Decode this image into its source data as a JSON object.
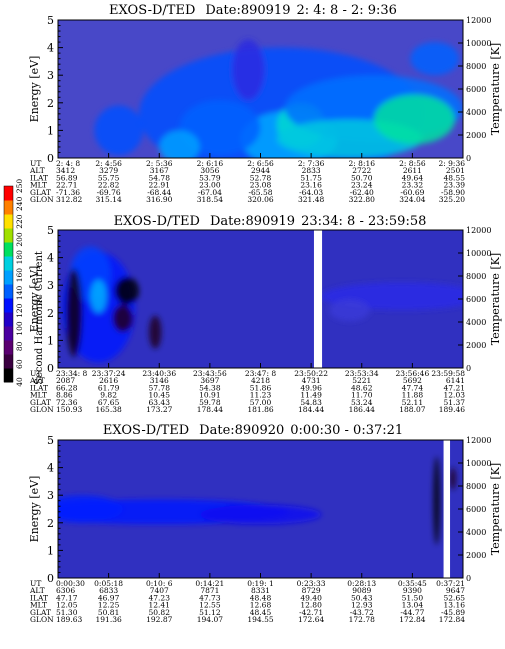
{
  "colorbar": {
    "label": "Second Harmonic Current",
    "ticks": [
      "40",
      "60",
      "80",
      "100",
      "120",
      "140",
      "160",
      "180",
      "200",
      "220",
      "240",
      "250"
    ],
    "colors": [
      "#000000",
      "#3a0040",
      "#5a0070",
      "#4a00a0",
      "#2000c8",
      "#0010ff",
      "#0060ff",
      "#00a0ff",
      "#00d0e0",
      "#00e060",
      "#a0e000",
      "#ffe000",
      "#ff8000",
      "#ff0000"
    ]
  },
  "orbit_labels": [
    "UT",
    "ALT",
    "ILAT",
    "MLT",
    "GLAT",
    "GLON"
  ],
  "chart_data": [
    {
      "type": "heatmap",
      "title": "EXOS-D/TED",
      "date": "Date:890919",
      "time_range": "2: 4: 8 - 2: 9:36",
      "ylabel": "Energy [eV]",
      "y2label": "Temperature [K]",
      "ylim": [
        0,
        5
      ],
      "y2lim": [
        0,
        12000
      ],
      "yticks": [
        "0",
        "1",
        "2",
        "3",
        "4",
        "5"
      ],
      "y2ticks": [
        "0",
        "2000",
        "4000",
        "6000",
        "8000",
        "10000",
        "12000"
      ],
      "background": "#4848c8",
      "columns": [
        {
          "UT": "2: 4: 8",
          "ALT": "3412",
          "ILAT": "56.89",
          "MLT": "22.71",
          "GLAT": "-71.36",
          "GLON": "312.82"
        },
        {
          "UT": "2: 4:56",
          "ALT": "3279",
          "ILAT": "55.75",
          "MLT": "22.82",
          "GLAT": "-69.76",
          "GLON": "315.14"
        },
        {
          "UT": "2: 5:36",
          "ALT": "3167",
          "ILAT": "54.78",
          "MLT": "22.91",
          "GLAT": "-68.44",
          "GLON": "316.90"
        },
        {
          "UT": "2: 6:16",
          "ALT": "3056",
          "ILAT": "53.79",
          "MLT": "23.00",
          "GLAT": "-67.04",
          "GLON": "318.54"
        },
        {
          "UT": "2: 6:56",
          "ALT": "2944",
          "ILAT": "52.78",
          "MLT": "23.08",
          "GLAT": "-65.58",
          "GLON": "320.06"
        },
        {
          "UT": "2: 7:36",
          "ALT": "2833",
          "ILAT": "51.75",
          "MLT": "23.16",
          "GLAT": "-64.03",
          "GLON": "321.48"
        },
        {
          "UT": "2: 8:16",
          "ALT": "2722",
          "ILAT": "50.70",
          "MLT": "23.24",
          "GLAT": "-62.40",
          "GLON": "322.80"
        },
        {
          "UT": "2: 8:56",
          "ALT": "2611",
          "ILAT": "49.64",
          "MLT": "23.32",
          "GLAT": "-60.69",
          "GLON": "324.04"
        },
        {
          "UT": "2: 9:36",
          "ALT": "2501",
          "ILAT": "48.55",
          "MLT": "23.39",
          "GLAT": "-58.90",
          "GLON": "325.20"
        }
      ],
      "blobs": [
        {
          "x": 0.55,
          "y": 1.6,
          "sx": 0.35,
          "sy": 2.4,
          "c": "#0050ff"
        },
        {
          "x": 0.57,
          "y": 0.7,
          "sx": 0.12,
          "sy": 1.0,
          "c": "#00a8ff"
        },
        {
          "x": 0.6,
          "y": 1.2,
          "sx": 0.06,
          "sy": 0.8,
          "c": "#00d8d0"
        },
        {
          "x": 0.4,
          "y": 1.1,
          "sx": 0.1,
          "sy": 1.0,
          "c": "#0060ff"
        },
        {
          "x": 0.78,
          "y": 1.8,
          "sx": 0.22,
          "sy": 1.2,
          "c": "#0070ff"
        },
        {
          "x": 0.72,
          "y": 0.7,
          "sx": 0.18,
          "sy": 0.7,
          "c": "#00c8e0"
        },
        {
          "x": 0.88,
          "y": 1.4,
          "sx": 0.1,
          "sy": 0.9,
          "c": "#00e0a0"
        },
        {
          "x": 0.15,
          "y": 1.0,
          "sx": 0.06,
          "sy": 0.9,
          "c": "#0050ff"
        },
        {
          "x": 0.3,
          "y": 0.4,
          "sx": 0.05,
          "sy": 0.6,
          "c": "#00a0ff"
        },
        {
          "x": 0.93,
          "y": 3.6,
          "sx": 0.06,
          "sy": 0.6,
          "c": "#0060ff"
        },
        {
          "x": 0.47,
          "y": 3.2,
          "sx": 0.04,
          "sy": 1.1,
          "c": "#2a2ae0"
        }
      ]
    },
    {
      "type": "heatmap",
      "title": "EXOS-D/TED",
      "date": "Date:890919",
      "time_range": "23:34: 8 - 23:59:58",
      "ylabel": "Energy [eV]",
      "y2label": "Temperature [K]",
      "ylim": [
        0,
        5
      ],
      "y2lim": [
        0,
        12000
      ],
      "yticks": [
        "0",
        "1",
        "2",
        "3",
        "4",
        "5"
      ],
      "y2ticks": [
        "0",
        "2000",
        "4000",
        "6000",
        "8000",
        "10000",
        "12000"
      ],
      "background": "#3030c0",
      "data_gap": [
        0.632,
        0.652
      ],
      "columns": [
        {
          "UT": "23:34: 8",
          "ALT": "2087",
          "ILAT": "66.28",
          "MLT": "8.86",
          "GLAT": "72.36",
          "GLON": "150.93"
        },
        {
          "UT": "23:37:24",
          "ALT": "2616",
          "ILAT": "61.79",
          "MLT": "9.82",
          "GLAT": "67.65",
          "GLON": "165.38"
        },
        {
          "UT": "23:40:36",
          "ALT": "3146",
          "ILAT": "57.78",
          "MLT": "10.45",
          "GLAT": "63.43",
          "GLON": "173.27"
        },
        {
          "UT": "23:43:56",
          "ALT": "3697",
          "ILAT": "54.38",
          "MLT": "10.91",
          "GLAT": "59.78",
          "GLON": "178.44"
        },
        {
          "UT": "23:47: 8",
          "ALT": "4218",
          "ILAT": "51.86",
          "MLT": "11.23",
          "GLAT": "57.00",
          "GLON": "181.86"
        },
        {
          "UT": "23:50:22",
          "ALT": "4731",
          "ILAT": "49.96",
          "MLT": "11.49",
          "GLAT": "54.83",
          "GLON": "184.44"
        },
        {
          "UT": "23:53:34",
          "ALT": "5221",
          "ILAT": "48.62",
          "MLT": "11.70",
          "GLAT": "53.24",
          "GLON": "186.44"
        },
        {
          "UT": "23:56:46",
          "ALT": "5692",
          "ILAT": "47.74",
          "MLT": "11.88",
          "GLAT": "52.11",
          "GLON": "188.07"
        },
        {
          "UT": "23:59:58",
          "ALT": "6141",
          "ILAT": "47.21",
          "MLT": "12.03",
          "GLAT": "51.37",
          "GLON": "189.46"
        }
      ],
      "blobs": [
        {
          "x": 0.1,
          "y": 2.2,
          "sx": 0.09,
          "sy": 2.0,
          "c": "#0018ff"
        },
        {
          "x": 0.08,
          "y": 3.4,
          "sx": 0.05,
          "sy": 1.0,
          "c": "#0040ff"
        },
        {
          "x": 0.17,
          "y": 2.8,
          "sx": 0.03,
          "sy": 0.5,
          "c": "#000000"
        },
        {
          "x": 0.16,
          "y": 1.8,
          "sx": 0.025,
          "sy": 0.5,
          "c": "#200020"
        },
        {
          "x": 0.04,
          "y": 2.0,
          "sx": 0.02,
          "sy": 1.6,
          "c": "#100018"
        },
        {
          "x": 0.1,
          "y": 2.6,
          "sx": 0.02,
          "sy": 0.6,
          "c": "#00b0ff"
        },
        {
          "x": 0.24,
          "y": 1.3,
          "sx": 0.015,
          "sy": 0.6,
          "c": "#200020"
        },
        {
          "x": 0.85,
          "y": 2.6,
          "sx": 0.2,
          "sy": 0.5,
          "c": "#2828e8"
        },
        {
          "x": 0.72,
          "y": 2.1,
          "sx": 0.05,
          "sy": 0.4,
          "c": "#3a3ad8"
        }
      ]
    },
    {
      "type": "heatmap",
      "title": "EXOS-D/TED",
      "date": "Date:890920",
      "time_range": "0:00:30 - 0:37:21",
      "ylabel": "Energy [eV]",
      "y2label": "Temperature [K]",
      "ylim": [
        0,
        5
      ],
      "y2lim": [
        0,
        12000
      ],
      "yticks": [
        "0",
        "1",
        "2",
        "3",
        "4",
        "5"
      ],
      "y2ticks": [
        "0",
        "2000",
        "4000",
        "6000",
        "8000",
        "10000",
        "12000"
      ],
      "background": "#3030c0",
      "data_gap": [
        0.952,
        0.968
      ],
      "columns": [
        {
          "UT": "0:00:30",
          "ALT": "6306",
          "ILAT": "47.17",
          "MLT": "12.05",
          "GLAT": "51.30",
          "GLON": "189.63"
        },
        {
          "UT": "0:05:18",
          "ALT": "6833",
          "ILAT": "46.97",
          "MLT": "12.25",
          "GLAT": "50.81",
          "GLON": "191.36"
        },
        {
          "UT": "0:10: 6",
          "ALT": "7407",
          "ILAT": "47.23",
          "MLT": "12.41",
          "GLAT": "50.82",
          "GLON": "192.87"
        },
        {
          "UT": "0:14:21",
          "ALT": "7871",
          "ILAT": "47.73",
          "MLT": "12.55",
          "GLAT": "51.12",
          "GLON": "194.07"
        },
        {
          "UT": "0:19: 1",
          "ALT": "8331",
          "ILAT": "48.48",
          "MLT": "12.68",
          "GLAT": "48.45",
          "GLON": "194.55"
        },
        {
          "UT": "0:23:33",
          "ALT": "8729",
          "ILAT": "49.40",
          "MLT": "12.80",
          "GLAT": "-42.71",
          "GLON": "172.64"
        },
        {
          "UT": "0:28:13",
          "ALT": "9089",
          "ILAT": "50.43",
          "MLT": "12.93",
          "GLAT": "-43.72",
          "GLON": "172.78"
        },
        {
          "UT": "0:35:45",
          "ALT": "9390",
          "ILAT": "51.50",
          "MLT": "13.04",
          "GLAT": "-44.77",
          "GLON": "172.84"
        },
        {
          "UT": "0:37:21",
          "ALT": "9647",
          "ILAT": "52.65",
          "MLT": "13.16",
          "GLAT": "-45.89",
          "GLON": "172.84"
        }
      ],
      "blobs": [
        {
          "x": 0.25,
          "y": 2.4,
          "sx": 0.32,
          "sy": 0.45,
          "c": "#0018ff"
        },
        {
          "x": 0.06,
          "y": 2.5,
          "sx": 0.1,
          "sy": 0.5,
          "c": "#0020ff"
        },
        {
          "x": 0.5,
          "y": 2.3,
          "sx": 0.15,
          "sy": 0.35,
          "c": "#1010f0"
        },
        {
          "x": 0.935,
          "y": 2.8,
          "sx": 0.008,
          "sy": 1.6,
          "c": "#000000"
        },
        {
          "x": 0.975,
          "y": 3.6,
          "sx": 0.008,
          "sy": 0.4,
          "c": "#200020"
        }
      ]
    }
  ]
}
